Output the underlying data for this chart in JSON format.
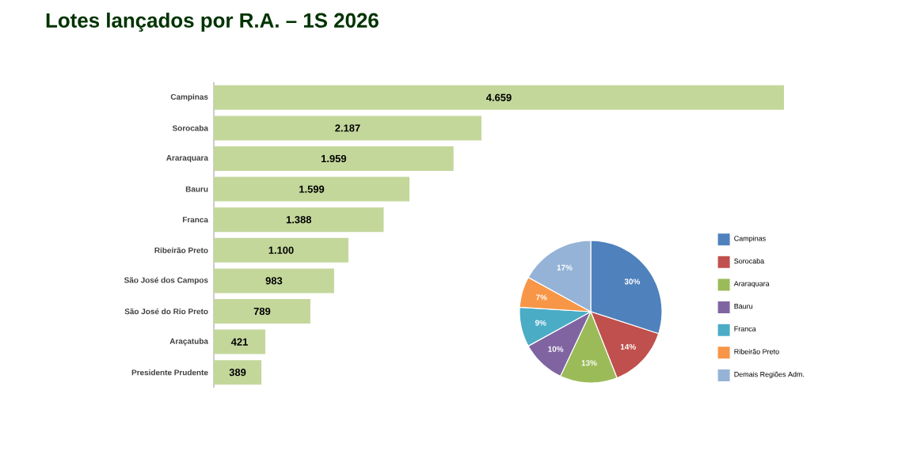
{
  "chart_data": [
    {
      "type": "bar",
      "orientation": "horizontal",
      "title": "Lotes lançados por R.A. – 1S 2026",
      "categories": [
        "Campinas",
        "Sorocaba",
        "Araraquara",
        "Bauru",
        "Franca",
        "Ribeirão Preto",
        "São José dos Campos",
        "São José do Rio Preto",
        "Araçatuba",
        "Presidente Prudente"
      ],
      "values": [
        4659,
        2187,
        1959,
        1599,
        1388,
        1100,
        983,
        789,
        421,
        389
      ],
      "value_labels": [
        "4.659",
        "2.187",
        "1.959",
        "1.599",
        "1.388",
        "1.100",
        "983",
        "789",
        "421",
        "389"
      ],
      "color": "#c4d79b"
    },
    {
      "type": "pie",
      "categories": [
        "Campinas",
        "Sorocaba",
        "Araraquara",
        "Bauru",
        "Franca",
        "Ribeirão Preto",
        "Demais Regiões Adm."
      ],
      "values": [
        30,
        14,
        13,
        10,
        9,
        7,
        17
      ],
      "value_labels": [
        "30%",
        "14%",
        "13%",
        "10%",
        "9%",
        "7%",
        "17%"
      ],
      "colors": [
        "#4f81bd",
        "#c0504d",
        "#9bbb59",
        "#8064a2",
        "#4bacc6",
        "#f79646",
        "#95b3d7"
      ],
      "legend": "right"
    }
  ]
}
